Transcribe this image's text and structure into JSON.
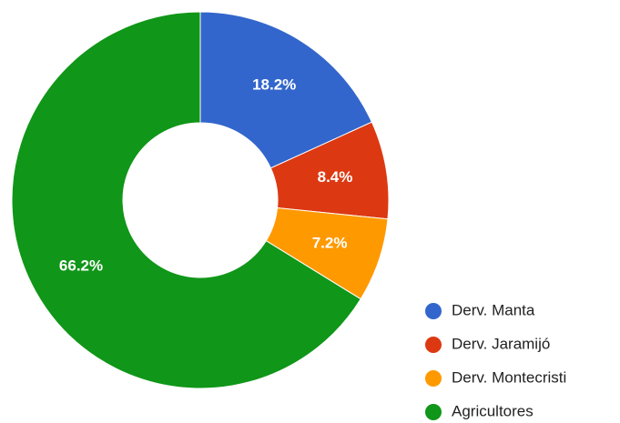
{
  "chart_data": {
    "type": "pie",
    "donut": true,
    "categories": [
      "Derv. Manta",
      "Derv. Jaramijó",
      "Derv. Montecristi",
      "Agricultores"
    ],
    "values": [
      18.2,
      8.4,
      7.2,
      66.2
    ],
    "value_labels": [
      "18.2%",
      "8.4%",
      "7.2%",
      "66.2%"
    ],
    "colors": [
      "#3366cc",
      "#dc3912",
      "#ff9900",
      "#109618"
    ],
    "legend": "bottom-right"
  }
}
